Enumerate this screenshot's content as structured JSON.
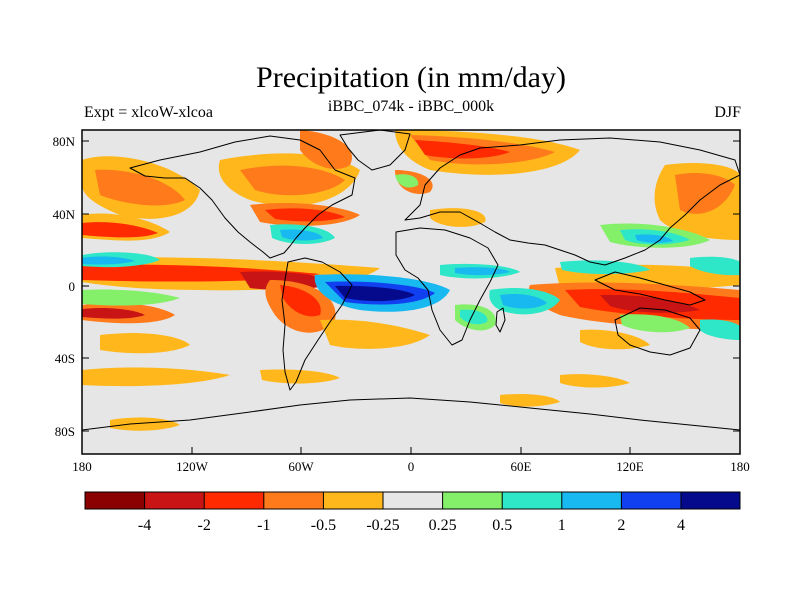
{
  "map": {
    "title": "Precipitation (in mm/day)",
    "left_label": "Expt = xlcoW-xlcoa",
    "center_label": "iBBC_074k - iBBC_000k",
    "right_label": "DJF",
    "lat_ticks": [
      "80N",
      "40N",
      "0",
      "40S",
      "80S"
    ],
    "lon_ticks": [
      "180",
      "120W",
      "60W",
      "0",
      "60E",
      "120E",
      "180"
    ]
  },
  "colorbar": {
    "colors": [
      "#8b0000",
      "#c81414",
      "#ff2a00",
      "#ff7a1a",
      "#ffb71c",
      "#e6e6e6",
      "#84f06a",
      "#2ee6c8",
      "#18b8f0",
      "#1040f0",
      "#050a8c"
    ],
    "labels": [
      "-4",
      "-2",
      "-1",
      "-0.5",
      "-0.25",
      "0.25",
      "0.5",
      "1",
      "2",
      "4"
    ]
  }
}
